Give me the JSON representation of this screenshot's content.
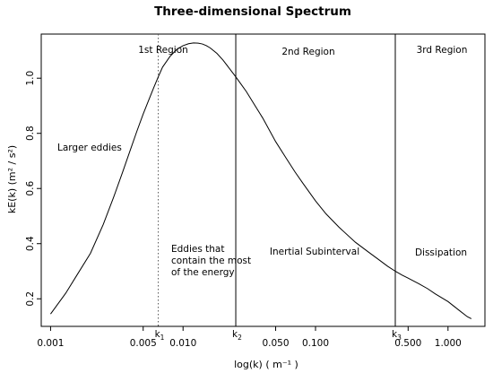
{
  "chart_data": {
    "type": "line",
    "title": "Three-dimensional Spectrum",
    "xlabel": "log(k) ( m⁻¹ )",
    "ylabel": "kE(k) (m² / s²)",
    "x_scale": "log",
    "xlim": [
      0.00085,
      1.9
    ],
    "ylim": [
      0.1,
      1.16
    ],
    "x_ticks": [
      {
        "value": 0.001,
        "label": "0.001"
      },
      {
        "value": 0.005,
        "label": "0.005"
      },
      {
        "value": 0.01,
        "label": "0.010"
      },
      {
        "value": 0.05,
        "label": "0.050"
      },
      {
        "value": 0.1,
        "label": "0.100"
      },
      {
        "value": 0.5,
        "label": "0.500"
      },
      {
        "value": 1.0,
        "label": "1.000"
      }
    ],
    "y_ticks": [
      {
        "value": 0.2,
        "label": "0.2"
      },
      {
        "value": 0.4,
        "label": "0.4"
      },
      {
        "value": 0.6,
        "label": "0.6"
      },
      {
        "value": 0.8,
        "label": "0.8"
      },
      {
        "value": 1.0,
        "label": "1.0"
      }
    ],
    "grid": false,
    "series": [
      {
        "x": [
          0.001,
          0.0013,
          0.0016,
          0.002,
          0.0025,
          0.003,
          0.0035,
          0.004,
          0.0045,
          0.005,
          0.0055,
          0.006,
          0.0065,
          0.007,
          0.008,
          0.009,
          0.01,
          0.011,
          0.012,
          0.013,
          0.014,
          0.015,
          0.016,
          0.018,
          0.02,
          0.022,
          0.025,
          0.028,
          0.03,
          0.035,
          0.04,
          0.05,
          0.06,
          0.07,
          0.08,
          0.1,
          0.12,
          0.15,
          0.2,
          0.25,
          0.3,
          0.35,
          0.4,
          0.45,
          0.5,
          0.6,
          0.7,
          0.8,
          1.0,
          1.2,
          1.4,
          1.5
        ],
        "y": [
          0.145,
          0.22,
          0.29,
          0.365,
          0.47,
          0.57,
          0.66,
          0.74,
          0.81,
          0.87,
          0.92,
          0.965,
          1.005,
          1.04,
          1.08,
          1.105,
          1.118,
          1.125,
          1.128,
          1.127,
          1.124,
          1.118,
          1.11,
          1.09,
          1.066,
          1.04,
          1.005,
          0.972,
          0.952,
          0.9,
          0.855,
          0.77,
          0.71,
          0.66,
          0.62,
          0.555,
          0.508,
          0.46,
          0.405,
          0.37,
          0.342,
          0.318,
          0.3,
          0.286,
          0.275,
          0.255,
          0.237,
          0.218,
          0.19,
          0.16,
          0.135,
          0.128
        ]
      }
    ],
    "vertical_lines": [
      {
        "x": 0.0065,
        "style": "dotted",
        "label": "k",
        "sub": "1"
      },
      {
        "x": 0.025,
        "style": "solid",
        "label": "k",
        "sub": "2"
      },
      {
        "x": 0.4,
        "style": "solid",
        "label": "k",
        "sub": "3"
      }
    ],
    "annotations": {
      "region1": "1st Region",
      "region2": "2nd Region",
      "region3": "3rd Region",
      "larger_eddies": "Larger eddies",
      "energy_lines": [
        "Eddies that",
        "contain the most",
        "of the energy"
      ],
      "inertial": "Inertial Subinterval",
      "dissipation": "Dissipation"
    }
  }
}
